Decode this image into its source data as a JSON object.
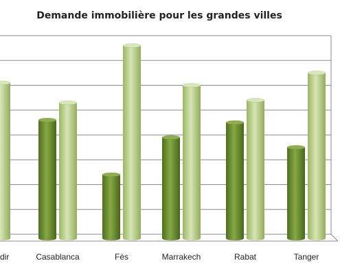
{
  "chart_data": {
    "type": "bar",
    "title": "Demande immobilière pour les grandes villes",
    "categories": [
      "Agadir",
      "Casablanca",
      "Fès",
      "Marrakech",
      "Rabat",
      "Tanger"
    ],
    "category_labels_shown": [
      "dir",
      "Casablanca",
      "Fès",
      "Marrakech",
      "Rabat",
      "Tanger"
    ],
    "series": [
      {
        "values": [
          null,
          4.6,
          2.4,
          3.9,
          4.5,
          3.5
        ],
        "color": "#7a9a3a"
      },
      {
        "values": [
          6.1,
          5.3,
          7.6,
          6.0,
          5.4,
          6.5
        ],
        "color": "#b8cf86"
      }
    ],
    "ylim": [
      0,
      8
    ],
    "grid": true,
    "legend": "none"
  }
}
